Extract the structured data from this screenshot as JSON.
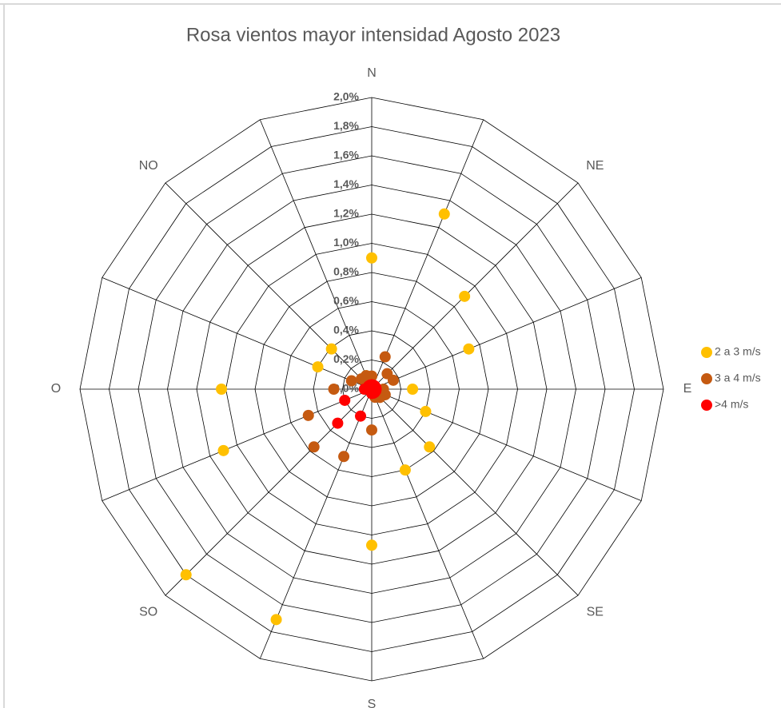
{
  "chart_data": {
    "type": "radar",
    "title": "Rosa vientos mayor intensidad Agosto 2023",
    "categories": [
      "N",
      null,
      "NE",
      null,
      "E",
      null,
      "SE",
      null,
      "S",
      null,
      "SO",
      null,
      "O",
      null,
      "NO",
      null
    ],
    "series": [
      {
        "name": "2 a 3 m/s",
        "color": "#ffc000",
        "values": [
          0.9,
          1.3,
          0.9,
          0.72,
          0.28,
          0.4,
          0.56,
          0.6,
          1.07,
          1.71,
          1.8,
          1.1,
          1.03,
          0.4,
          0.39,
          0.1
        ]
      },
      {
        "name": "3 a 4 m/s",
        "color": "#c55a11",
        "values": [
          0.09,
          0.24,
          0.15,
          0.16,
          0.08,
          0.1,
          0.08,
          0.06,
          0.28,
          0.5,
          0.56,
          0.47,
          0.26,
          0.15,
          0.1,
          0.1
        ]
      },
      {
        "name": ">4 m/s",
        "color": "#ff0000",
        "values": [
          0.03,
          0.03,
          0.03,
          0.03,
          0.03,
          0.03,
          0.03,
          0.03,
          0.03,
          0.2,
          0.33,
          0.2,
          0.05,
          0.03,
          0.03,
          0.03
        ]
      }
    ],
    "ylim": [
      0,
      2
    ],
    "yticks": [
      {
        "value": 0,
        "label": "0,0%"
      },
      {
        "value": 0.2,
        "label": "0,2%"
      },
      {
        "value": 0.4,
        "label": "0,4%"
      },
      {
        "value": 0.6,
        "label": "0,6%"
      },
      {
        "value": 0.8,
        "label": "0,8%"
      },
      {
        "value": 1.0,
        "label": "1,0%"
      },
      {
        "value": 1.2,
        "label": "1,2%"
      },
      {
        "value": 1.4,
        "label": "1,4%"
      },
      {
        "value": 1.6,
        "label": "1,6%"
      },
      {
        "value": 1.8,
        "label": "1,8%"
      },
      {
        "value": 2.0,
        "label": "2,0%"
      }
    ],
    "grid": true,
    "legend": "right"
  }
}
